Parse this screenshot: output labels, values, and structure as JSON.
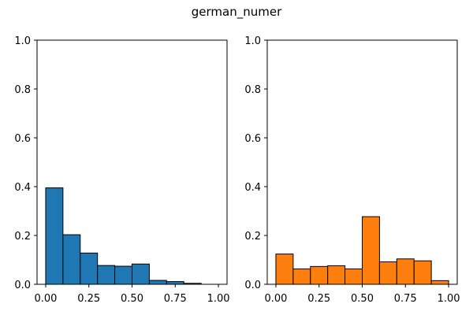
{
  "figure": {
    "title": "german_numer"
  },
  "chart_data": [
    {
      "type": "bar",
      "bin_edges": [
        0.0,
        0.1,
        0.2,
        0.3,
        0.4,
        0.5,
        0.6,
        0.7,
        0.8,
        0.9,
        1.0
      ],
      "values": [
        0.395,
        0.203,
        0.128,
        0.077,
        0.074,
        0.083,
        0.016,
        0.011,
        0.004,
        0.0
      ],
      "color": "#1f77b4",
      "xlim": [
        -0.05,
        1.05
      ],
      "ylim": [
        0,
        1.0
      ],
      "xticks": [
        0.0,
        0.25,
        0.5,
        0.75,
        1.0
      ],
      "xtick_labels": [
        "0.00",
        "0.25",
        "0.50",
        "0.75",
        "1.00"
      ],
      "yticks": [
        0.0,
        0.2,
        0.4,
        0.6,
        0.8,
        1.0
      ],
      "ytick_labels": [
        "0.0",
        "0.2",
        "0.4",
        "0.6",
        "0.8",
        "1.0"
      ]
    },
    {
      "type": "bar",
      "bin_edges": [
        0.0,
        0.1,
        0.2,
        0.3,
        0.4,
        0.5,
        0.6,
        0.7,
        0.8,
        0.9,
        1.0
      ],
      "values": [
        0.124,
        0.063,
        0.073,
        0.076,
        0.063,
        0.277,
        0.092,
        0.104,
        0.096,
        0.015
      ],
      "color": "#ff7f0e",
      "xlim": [
        -0.05,
        1.05
      ],
      "ylim": [
        0,
        1.0
      ],
      "xticks": [
        0.0,
        0.25,
        0.5,
        0.75,
        1.0
      ],
      "xtick_labels": [
        "0.00",
        "0.25",
        "0.50",
        "0.75",
        "1.00"
      ],
      "yticks": [
        0.0,
        0.2,
        0.4,
        0.6,
        0.8,
        1.0
      ],
      "ytick_labels": [
        "0.0",
        "0.2",
        "0.4",
        "0.6",
        "0.8",
        "1.0"
      ]
    }
  ]
}
